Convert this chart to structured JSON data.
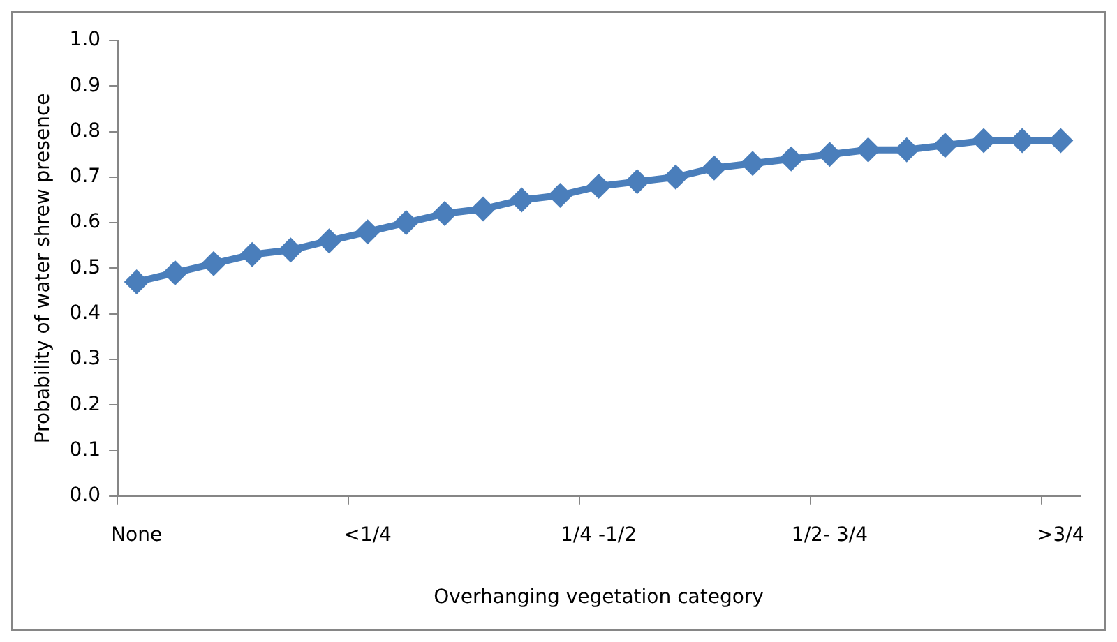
{
  "chart_data": {
    "type": "line",
    "xlabel": "Overhanging vegetation category",
    "ylabel": "Probability of water shrew presence",
    "categories": [
      "None",
      null,
      null,
      null,
      null,
      null,
      "<1/4",
      null,
      null,
      null,
      null,
      null,
      "1/4 -1/2",
      null,
      null,
      null,
      null,
      null,
      "1/2- 3/4",
      null,
      null,
      null,
      null,
      null,
      ">3/4"
    ],
    "series": [
      {
        "color": "#4a7ebb",
        "values": [
          0.47,
          0.49,
          0.51,
          0.53,
          0.54,
          0.56,
          0.58,
          0.6,
          0.62,
          0.63,
          0.65,
          0.66,
          0.68,
          0.69,
          0.7,
          0.72,
          0.73,
          0.74,
          0.75,
          0.76,
          0.76,
          0.77,
          0.78,
          0.78,
          0.78
        ]
      }
    ],
    "ylim": [
      0,
      1
    ],
    "yticks": [
      {
        "value": 0,
        "label": "0.0"
      },
      {
        "value": 0.1,
        "label": "0.1"
      },
      {
        "value": 0.2,
        "label": "0.2"
      },
      {
        "value": 0.3,
        "label": "0.3"
      },
      {
        "value": 0.4,
        "label": "0.4"
      },
      {
        "value": 0.5,
        "label": "0.5"
      },
      {
        "value": 0.6,
        "label": "0.6"
      },
      {
        "value": 0.7,
        "label": "0.7"
      },
      {
        "value": 0.8,
        "label": "0.8"
      },
      {
        "value": 0.9,
        "label": "0.9"
      },
      {
        "value": 1,
        "label": "1.0"
      }
    ],
    "grid": false,
    "legend": false,
    "marker": "diamond",
    "line_style": "solid"
  }
}
